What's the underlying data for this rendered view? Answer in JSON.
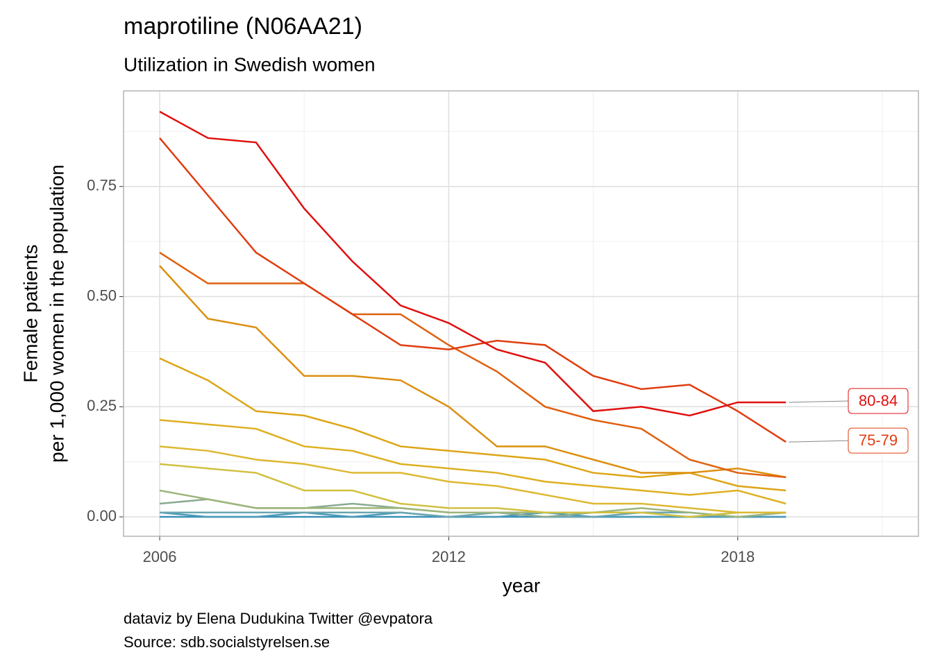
{
  "chart_data": {
    "type": "line",
    "title": "maprotiline (N06AA21)",
    "subtitle": "Utilization in Swedish women",
    "x_label": "year",
    "y_label": [
      "Female patients",
      "per 1,000 women in the population"
    ],
    "caption": [
      "dataviz by Elena Dudukina Twitter @evpatora",
      "Source: sdb.socialstyrelsen.se"
    ],
    "x": [
      2006,
      2007,
      2008,
      2009,
      2010,
      2011,
      2012,
      2013,
      2014,
      2015,
      2016,
      2017,
      2018,
      2019
    ],
    "xlim": [
      2005.25,
      2021.75
    ],
    "xticks": [
      2006,
      2012,
      2018
    ],
    "xticks_minor": [
      2009,
      2015,
      2021
    ],
    "ylim": [
      -0.044,
      0.967
    ],
    "yticks": [
      {
        "value": 0,
        "label": "0.00"
      },
      {
        "value": 0.25,
        "label": "0.25"
      },
      {
        "value": 0.5,
        "label": "0.50"
      },
      {
        "value": 0.75,
        "label": "0.75"
      }
    ],
    "yticks_minor": [
      0.125,
      0.375,
      0.625,
      0.875
    ],
    "grid": true,
    "series": [
      {
        "color": "#3a8fb7",
        "values": [
          0,
          0,
          0,
          0,
          0,
          0,
          0,
          0,
          0,
          0,
          0,
          0,
          0,
          0
        ]
      },
      {
        "color": "#4a9ab8",
        "values": [
          0.01,
          0,
          0,
          0.01,
          0,
          0.01,
          0,
          0,
          0.01,
          0,
          0,
          0,
          0,
          0
        ]
      },
      {
        "color": "#6aa5b0",
        "values": [
          0.01,
          0.01,
          0.01,
          0.01,
          0.01,
          0.01,
          0,
          0.01,
          0,
          0,
          0.01,
          0.01,
          0,
          0.01
        ]
      },
      {
        "color": "#8aaa90",
        "values": [
          0.03,
          0.04,
          0.02,
          0.02,
          0.03,
          0.02,
          0.01,
          0.01,
          0,
          0.01,
          0.01,
          0,
          0.01,
          0.01
        ]
      },
      {
        "color": "#9db57a",
        "values": [
          0.06,
          0.04,
          0.02,
          0.02,
          0.02,
          0.02,
          0.01,
          0.01,
          0.01,
          0.01,
          0.02,
          0.01,
          0,
          0.01
        ]
      },
      {
        "color": "#d0c040",
        "values": [
          0.12,
          0.11,
          0.1,
          0.06,
          0.06,
          0.03,
          0.02,
          0.02,
          0.01,
          0.01,
          0.01,
          0,
          0.01,
          0.01
        ]
      },
      {
        "color": "#ddb830",
        "values": [
          0.16,
          0.15,
          0.13,
          0.12,
          0.1,
          0.1,
          0.08,
          0.07,
          0.05,
          0.03,
          0.03,
          0.02,
          0.01,
          0.01
        ]
      },
      {
        "color": "#ddb020",
        "values": [
          0.22,
          0.21,
          0.2,
          0.16,
          0.15,
          0.12,
          0.11,
          0.1,
          0.08,
          0.07,
          0.06,
          0.05,
          0.06,
          0.03
        ]
      },
      {
        "color": "#dda515",
        "values": [
          0.36,
          0.31,
          0.24,
          0.23,
          0.2,
          0.16,
          0.15,
          0.14,
          0.13,
          0.1,
          0.09,
          0.1,
          0.07,
          0.06
        ]
      },
      {
        "color": "#dc8f0f",
        "values": [
          0.57,
          0.45,
          0.43,
          0.32,
          0.32,
          0.31,
          0.25,
          0.16,
          0.16,
          0.13,
          0.1,
          0.1,
          0.11,
          0.09
        ]
      },
      {
        "color": "#e0600f",
        "values": [
          0.6,
          0.53,
          0.53,
          0.53,
          0.46,
          0.46,
          0.39,
          0.33,
          0.25,
          0.22,
          0.2,
          0.13,
          0.1,
          0.09
        ]
      },
      {
        "name": "75-79",
        "color": "#e03c0f",
        "values": [
          0.86,
          0.73,
          0.6,
          0.53,
          0.46,
          0.39,
          0.38,
          0.4,
          0.39,
          0.32,
          0.29,
          0.3,
          0.24,
          0.17
        ]
      },
      {
        "name": "80-84",
        "color": "#e0100f",
        "values": [
          0.92,
          0.86,
          0.85,
          0.7,
          0.58,
          0.48,
          0.44,
          0.38,
          0.35,
          0.24,
          0.25,
          0.23,
          0.26,
          0.26
        ]
      }
    ]
  }
}
